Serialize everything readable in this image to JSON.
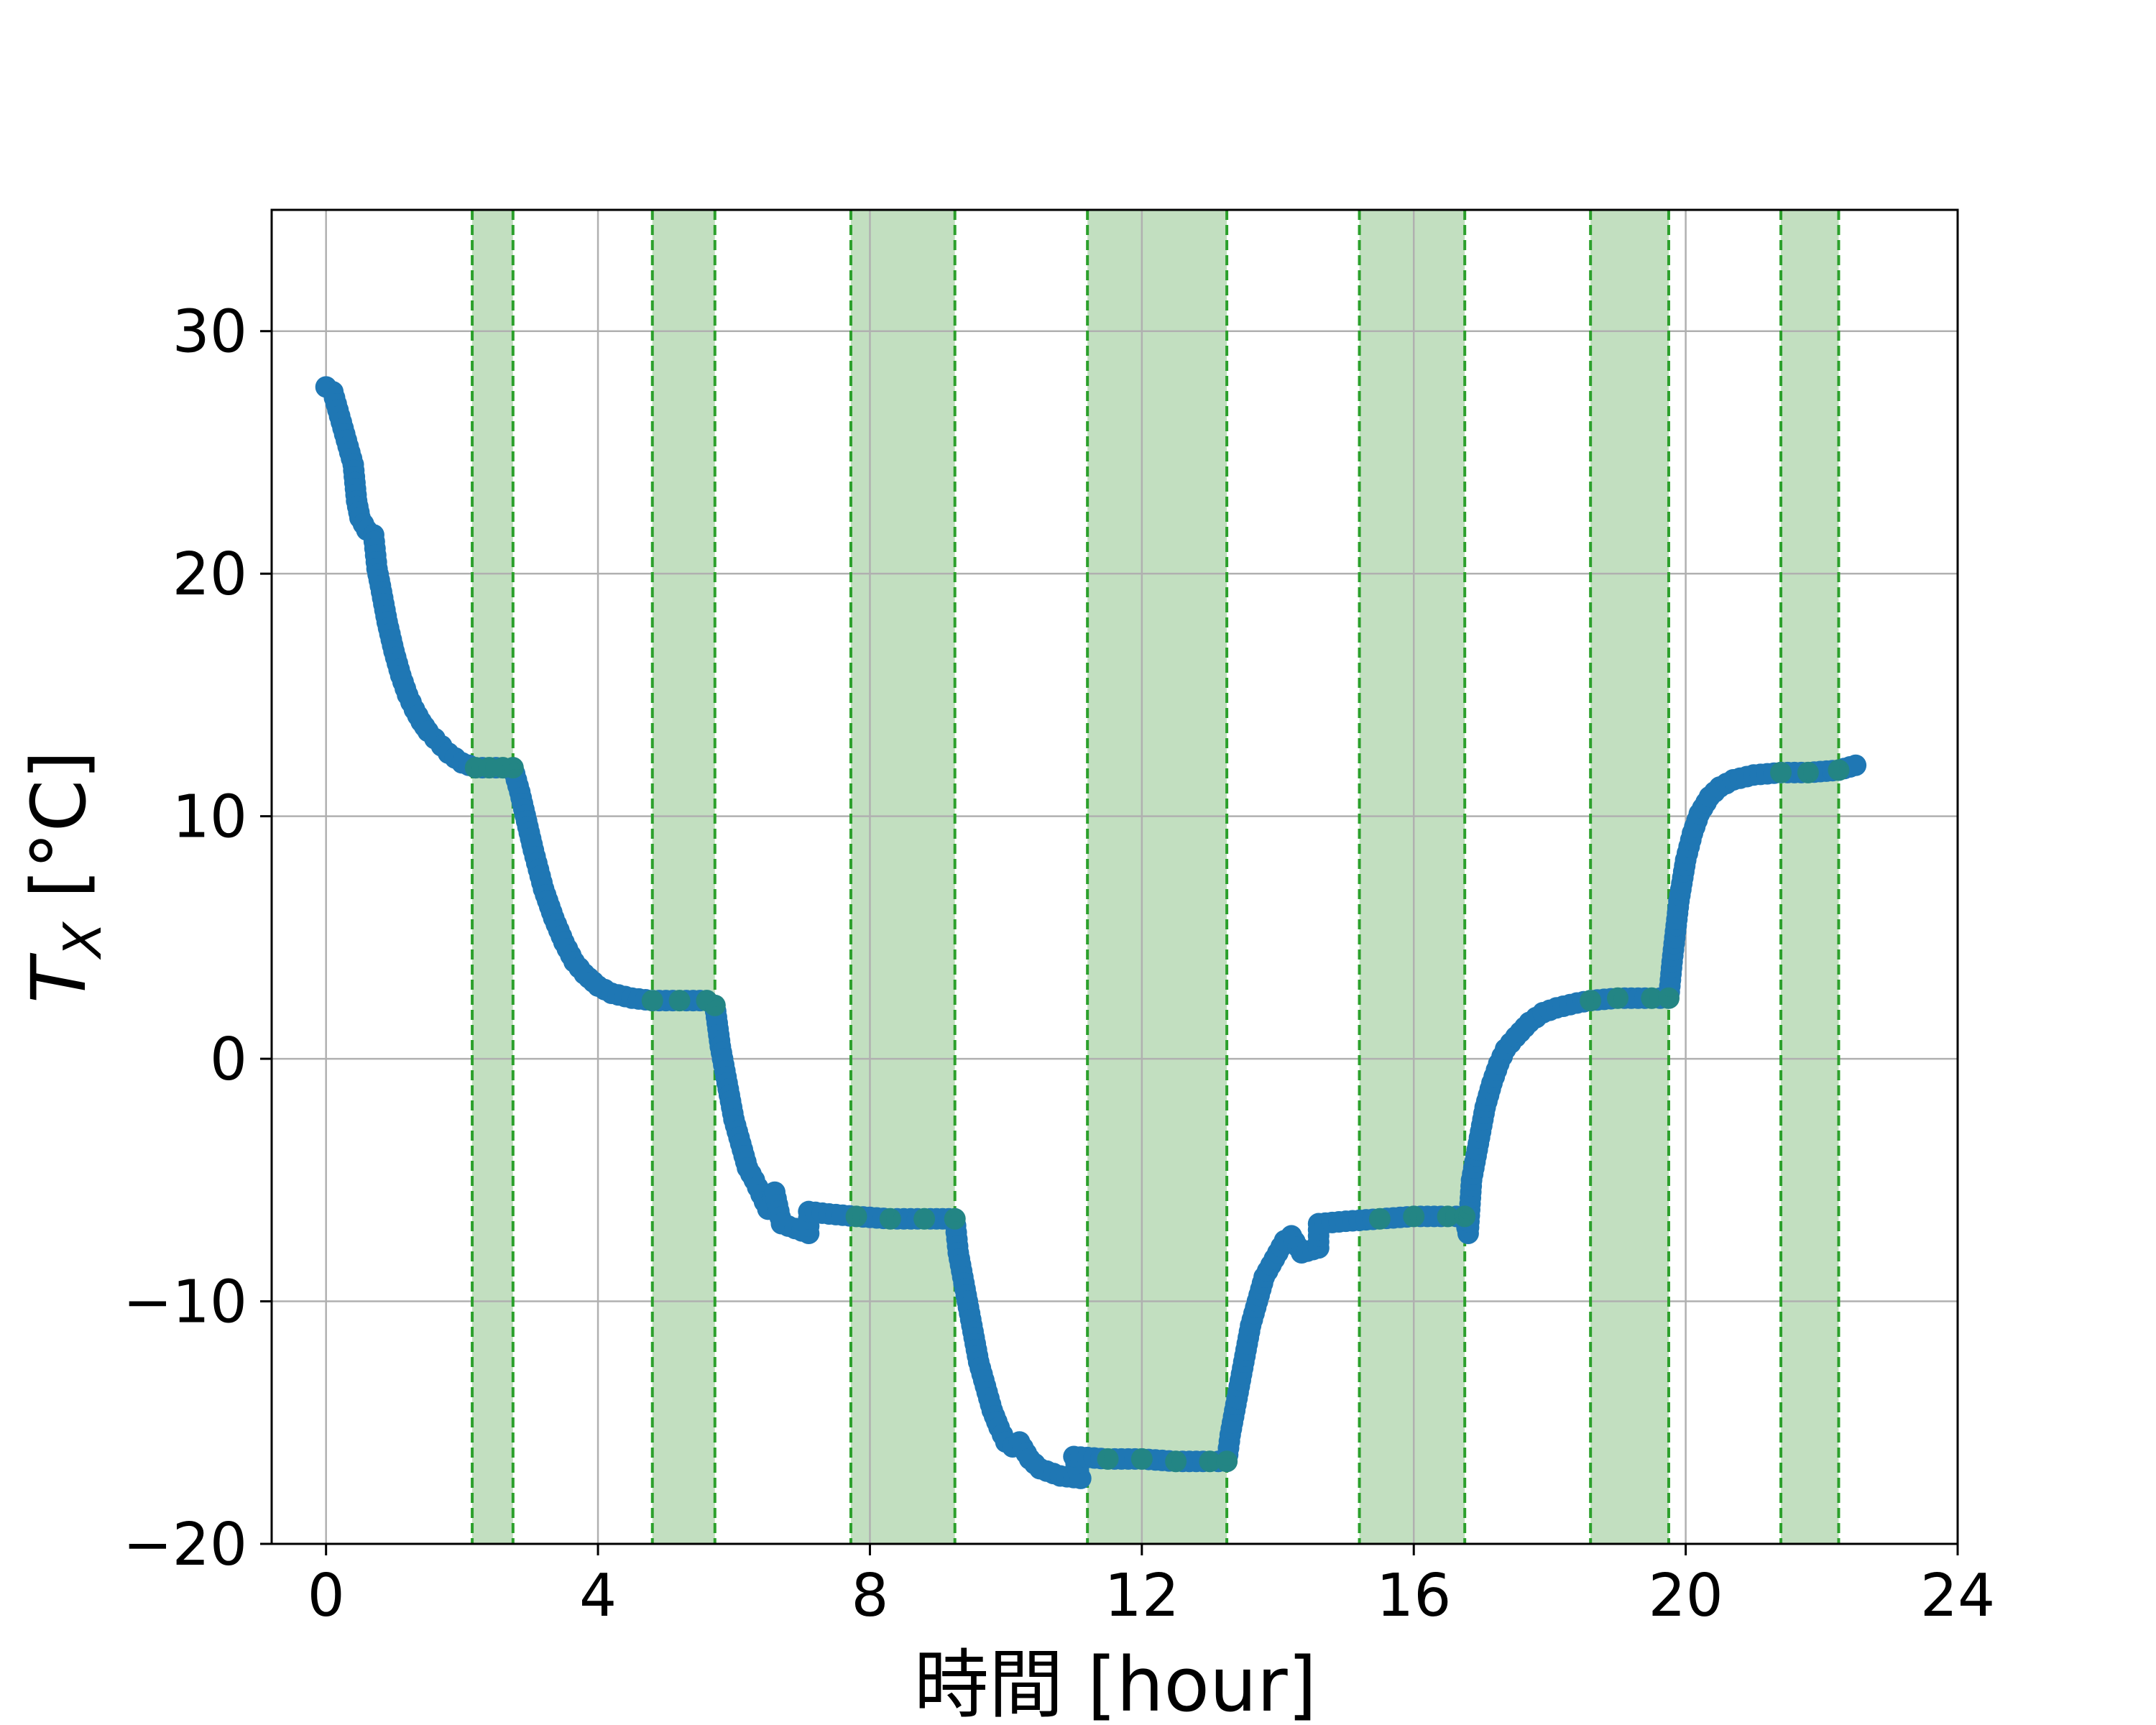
{
  "chart_data": {
    "type": "scatter",
    "title": "",
    "xlabel": "時間 [hour]",
    "ylabel_main": "T",
    "ylabel_sub": "X",
    "ylabel_unit": " [°C]",
    "xlim": [
      -0.8,
      24
    ],
    "ylim": [
      -20,
      35
    ],
    "xticks": [
      0,
      4,
      8,
      12,
      16,
      20,
      24
    ],
    "xtick_labels": [
      "0",
      "4",
      "8",
      "12",
      "16",
      "20",
      "24"
    ],
    "yticks": [
      -20,
      -10,
      0,
      10,
      20,
      30
    ],
    "ytick_labels": [
      "−20",
      "−10",
      "0",
      "10",
      "20",
      "30"
    ],
    "grid": true,
    "colors": {
      "series": "#1f77b4",
      "band_fill": "#c2dfc0",
      "band_line": "#2ca02c",
      "grid": "#b0b0b0"
    },
    "shaded_intervals": [
      [
        2.15,
        2.75
      ],
      [
        4.8,
        5.72
      ],
      [
        7.72,
        9.25
      ],
      [
        11.2,
        13.25
      ],
      [
        15.2,
        16.75
      ],
      [
        18.6,
        19.75
      ],
      [
        21.4,
        22.25
      ]
    ],
    "series": [
      {
        "values_xy": [
          [
            0.0,
            27.7
          ],
          [
            0.1,
            27.5
          ],
          [
            0.2,
            26.5
          ],
          [
            0.3,
            25.5
          ],
          [
            0.4,
            24.5
          ],
          [
            0.45,
            23.0
          ],
          [
            0.5,
            22.3
          ],
          [
            0.6,
            21.8
          ],
          [
            0.7,
            21.6
          ],
          [
            0.75,
            20.2
          ],
          [
            0.8,
            19.5
          ],
          [
            0.9,
            18.0
          ],
          [
            1.0,
            16.8
          ],
          [
            1.1,
            15.8
          ],
          [
            1.2,
            15.0
          ],
          [
            1.3,
            14.4
          ],
          [
            1.4,
            13.9
          ],
          [
            1.5,
            13.5
          ],
          [
            1.6,
            13.2
          ],
          [
            1.7,
            12.9
          ],
          [
            1.8,
            12.6
          ],
          [
            1.9,
            12.4
          ],
          [
            2.0,
            12.2
          ],
          [
            2.2,
            12.0
          ],
          [
            2.4,
            12.0
          ],
          [
            2.6,
            12.0
          ],
          [
            2.75,
            12.0
          ],
          [
            2.85,
            11.0
          ],
          [
            2.95,
            9.8
          ],
          [
            3.05,
            8.6
          ],
          [
            3.2,
            7.0
          ],
          [
            3.35,
            5.8
          ],
          [
            3.5,
            4.8
          ],
          [
            3.65,
            4.0
          ],
          [
            3.8,
            3.5
          ],
          [
            4.0,
            3.0
          ],
          [
            4.2,
            2.7
          ],
          [
            4.5,
            2.5
          ],
          [
            4.8,
            2.4
          ],
          [
            5.2,
            2.4
          ],
          [
            5.6,
            2.4
          ],
          [
            5.72,
            2.2
          ],
          [
            5.8,
            0.5
          ],
          [
            5.9,
            -1.0
          ],
          [
            6.0,
            -2.5
          ],
          [
            6.1,
            -3.5
          ],
          [
            6.2,
            -4.5
          ],
          [
            6.3,
            -5.0
          ],
          [
            6.4,
            -5.6
          ],
          [
            6.5,
            -6.2
          ],
          [
            6.6,
            -5.5
          ],
          [
            6.7,
            -6.8
          ],
          [
            6.9,
            -7.0
          ],
          [
            7.1,
            -7.2
          ],
          [
            7.1,
            -6.3
          ],
          [
            7.4,
            -6.4
          ],
          [
            7.8,
            -6.5
          ],
          [
            8.3,
            -6.6
          ],
          [
            8.8,
            -6.6
          ],
          [
            9.25,
            -6.6
          ],
          [
            9.3,
            -8.0
          ],
          [
            9.4,
            -9.5
          ],
          [
            9.5,
            -11.0
          ],
          [
            9.6,
            -12.5
          ],
          [
            9.7,
            -13.5
          ],
          [
            9.8,
            -14.5
          ],
          [
            9.9,
            -15.2
          ],
          [
            10.0,
            -15.8
          ],
          [
            10.1,
            -16.0
          ],
          [
            10.2,
            -15.8
          ],
          [
            10.35,
            -16.5
          ],
          [
            10.5,
            -16.9
          ],
          [
            10.8,
            -17.2
          ],
          [
            11.1,
            -17.3
          ],
          [
            11.0,
            -16.4
          ],
          [
            11.5,
            -16.5
          ],
          [
            12.0,
            -16.5
          ],
          [
            12.5,
            -16.6
          ],
          [
            13.0,
            -16.6
          ],
          [
            13.25,
            -16.6
          ],
          [
            13.3,
            -15.5
          ],
          [
            13.4,
            -14.0
          ],
          [
            13.5,
            -12.5
          ],
          [
            13.6,
            -11.0
          ],
          [
            13.7,
            -10.0
          ],
          [
            13.8,
            -9.0
          ],
          [
            13.9,
            -8.5
          ],
          [
            14.0,
            -8.0
          ],
          [
            14.1,
            -7.5
          ],
          [
            14.2,
            -7.3
          ],
          [
            14.35,
            -8.0
          ],
          [
            14.6,
            -7.8
          ],
          [
            14.6,
            -6.8
          ],
          [
            15.0,
            -6.7
          ],
          [
            15.5,
            -6.6
          ],
          [
            16.0,
            -6.5
          ],
          [
            16.5,
            -6.5
          ],
          [
            16.75,
            -6.5
          ],
          [
            16.8,
            -7.2
          ],
          [
            16.85,
            -5.0
          ],
          [
            16.95,
            -3.5
          ],
          [
            17.05,
            -2.0
          ],
          [
            17.15,
            -1.0
          ],
          [
            17.25,
            -0.2
          ],
          [
            17.35,
            0.4
          ],
          [
            17.5,
            0.9
          ],
          [
            17.7,
            1.5
          ],
          [
            17.9,
            1.9
          ],
          [
            18.1,
            2.1
          ],
          [
            18.4,
            2.3
          ],
          [
            18.6,
            2.4
          ],
          [
            19.0,
            2.5
          ],
          [
            19.5,
            2.5
          ],
          [
            19.75,
            2.5
          ],
          [
            19.8,
            4.0
          ],
          [
            19.9,
            6.5
          ],
          [
            20.0,
            8.2
          ],
          [
            20.1,
            9.3
          ],
          [
            20.2,
            10.1
          ],
          [
            20.35,
            10.8
          ],
          [
            20.5,
            11.2
          ],
          [
            20.7,
            11.5
          ],
          [
            21.0,
            11.7
          ],
          [
            21.4,
            11.8
          ],
          [
            21.8,
            11.8
          ],
          [
            22.25,
            11.9
          ],
          [
            22.5,
            12.1
          ]
        ]
      }
    ]
  }
}
